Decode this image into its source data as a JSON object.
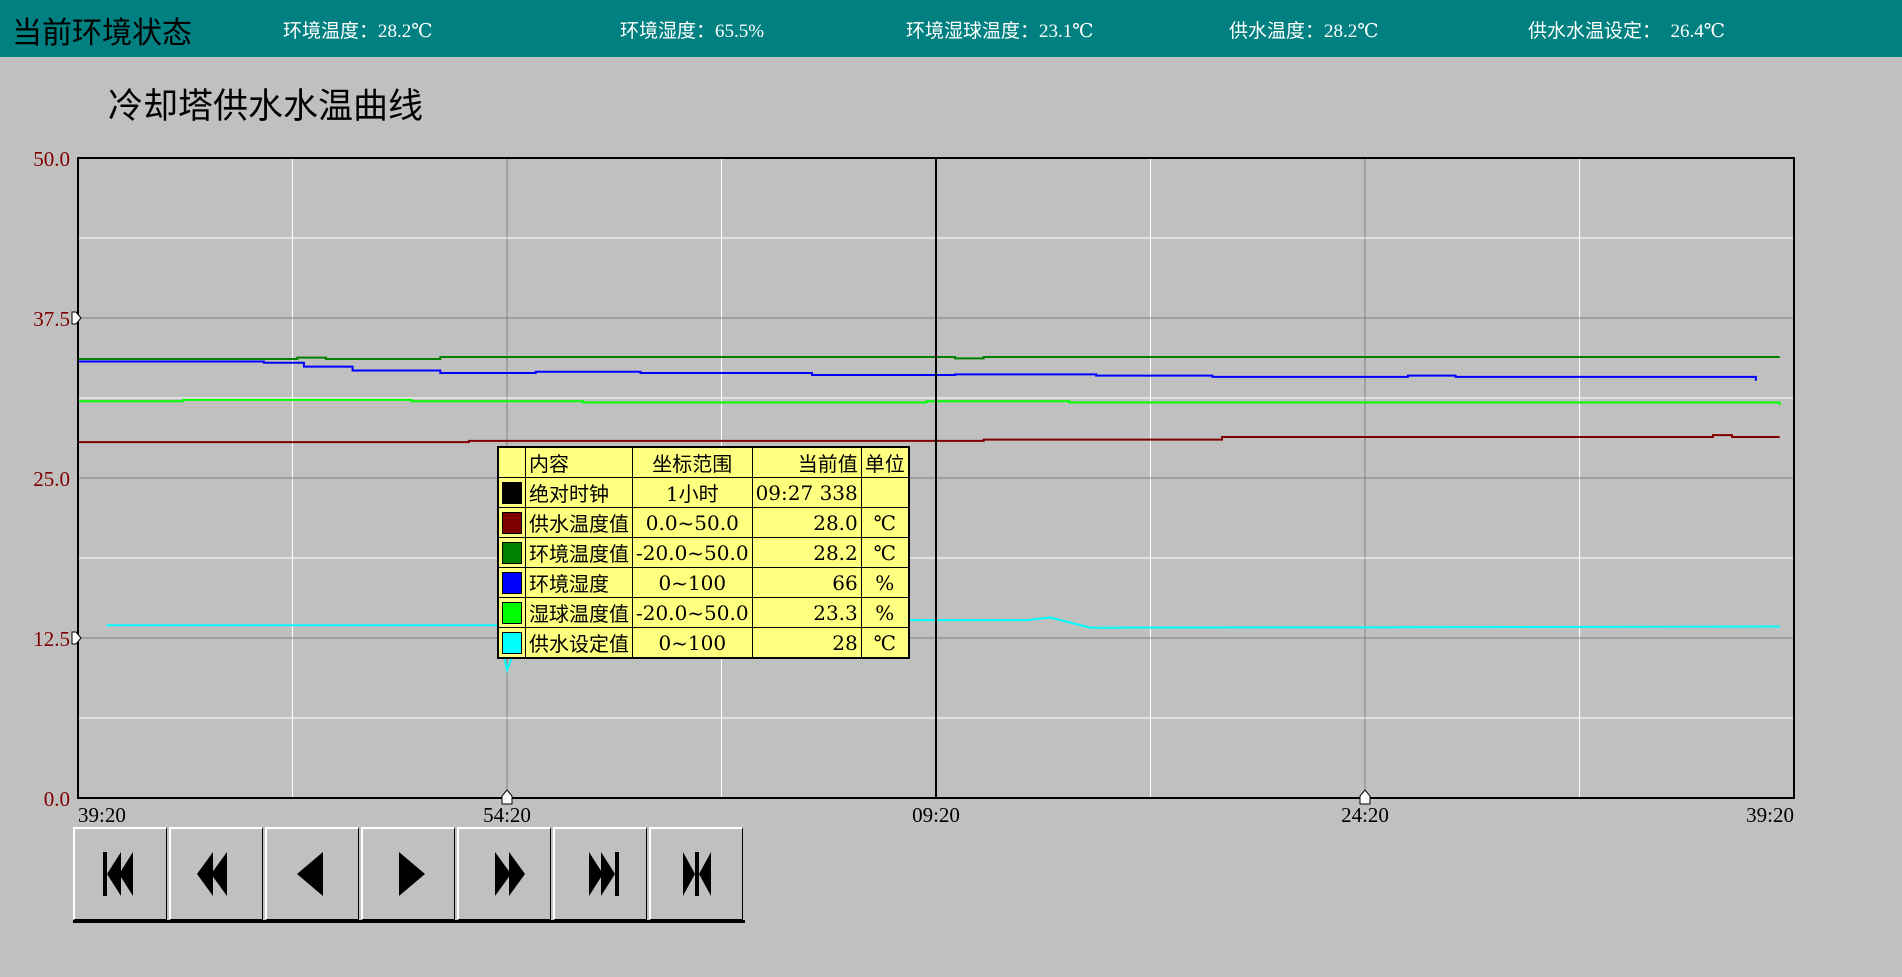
{
  "header": {
    "title": "当前环境状态",
    "items": [
      {
        "label": "环境温度：28.2℃"
      },
      {
        "label": "环境湿度：65.5%"
      },
      {
        "label": "环境湿球温度：23.1℃"
      },
      {
        "label": "供水温度：28.2℃"
      },
      {
        "label": "供水水温设定：  26.4℃"
      }
    ]
  },
  "colors": {
    "header_bg": "#008080",
    "axis_label": "#800000",
    "legend_bg": "#ffff80"
  },
  "chart_data": {
    "type": "line",
    "title": "冷却塔供水水温曲线",
    "ylim": [
      0,
      50
    ],
    "y_ticks": [
      "50.0",
      "37.5",
      "25.0",
      "12.5",
      "0.0"
    ],
    "x_ticks": [
      "39:20",
      "54:20",
      "09:20",
      "24:20",
      "39:20"
    ],
    "x_range_minutes": 60,
    "grid": true,
    "cursor_time": "09:20",
    "series": [
      {
        "name": "环境温度值",
        "color": "#008000",
        "points": [
          [
            "39:20",
            34.3
          ],
          [
            "47:00",
            34.4
          ],
          [
            "48:00",
            34.3
          ],
          [
            "52:00",
            34.45
          ],
          [
            "05:00",
            34.45
          ],
          [
            "10:00",
            34.35
          ],
          [
            "11:00",
            34.45
          ],
          [
            "38:50",
            34.45
          ]
        ]
      },
      {
        "name": "环境湿度",
        "color": "#0000ff",
        "points": [
          [
            "39:20",
            34.1
          ],
          [
            "45:50",
            34.0
          ],
          [
            "47:14",
            33.7
          ],
          [
            "48:56",
            33.4
          ],
          [
            "52:00",
            33.2
          ],
          [
            "55:20",
            33.3
          ],
          [
            "59:00",
            33.2
          ],
          [
            "05:00",
            33.05
          ],
          [
            "10:00",
            33.1
          ],
          [
            "14:56",
            33.0
          ],
          [
            "19:00",
            32.9
          ],
          [
            "25:50",
            33.0
          ],
          [
            "26:30",
            33.0
          ],
          [
            "27:30",
            32.9
          ],
          [
            "38:00",
            32.6
          ]
        ]
      },
      {
        "name": "湿球温度值",
        "color": "#00ff00",
        "points": [
          [
            "39:20",
            31.0
          ],
          [
            "43:00",
            31.1
          ],
          [
            "51:00",
            31.0
          ],
          [
            "57:00",
            30.9
          ],
          [
            "09:00",
            31.0
          ],
          [
            "14:00",
            30.9
          ],
          [
            "37:50",
            30.9
          ],
          [
            "38:50",
            30.7
          ]
        ]
      },
      {
        "name": "供水温度值",
        "color": "#800000",
        "points": [
          [
            "39:20",
            27.8
          ],
          [
            "52:30",
            27.8
          ],
          [
            "53:00",
            27.9
          ],
          [
            "09:00",
            27.9
          ],
          [
            "11:00",
            28.0
          ],
          [
            "19:08",
            28.0
          ],
          [
            "19:20",
            28.2
          ],
          [
            "35:50",
            28.2
          ],
          [
            "36:30",
            28.35
          ],
          [
            "37:10",
            28.2
          ],
          [
            "38:50",
            28.2
          ]
        ]
      },
      {
        "name": "供水设定值",
        "color": "#00ffff",
        "points": [
          [
            "40:20",
            13.5
          ],
          [
            "54:00",
            13.5
          ],
          [
            "54:20",
            10.0
          ],
          [
            "55:00",
            13.8
          ],
          [
            "09:20",
            13.9
          ],
          [
            "12:30",
            13.9
          ],
          [
            "13:20",
            14.1
          ],
          [
            "14:44",
            13.3
          ],
          [
            "38:50",
            13.4
          ]
        ]
      }
    ]
  },
  "legend": {
    "headers": [
      "内容",
      "坐标范围",
      "当前值",
      "单位"
    ],
    "rows": [
      {
        "color": "#000000",
        "name": "绝对时钟",
        "range": "1小时",
        "value": "09:27 338",
        "unit": ""
      },
      {
        "color": "#800000",
        "name": "供水温度值",
        "range": "0.0~50.0",
        "value": "28.0",
        "unit": "℃"
      },
      {
        "color": "#008000",
        "name": "环境温度值",
        "range": "-20.0~50.0",
        "value": "28.2",
        "unit": "℃"
      },
      {
        "color": "#0000ff",
        "name": "环境湿度",
        "range": "0~100",
        "value": "66",
        "unit": "%"
      },
      {
        "color": "#00ff00",
        "name": "湿球温度值",
        "range": "-20.0~50.0",
        "value": "23.3",
        "unit": "%"
      },
      {
        "color": "#00ffff",
        "name": "供水设定值",
        "range": "0~100",
        "value": "28",
        "unit": "℃"
      }
    ]
  },
  "buttons": [
    {
      "name": "first-page-icon"
    },
    {
      "name": "fast-backward-icon"
    },
    {
      "name": "step-backward-icon"
    },
    {
      "name": "step-forward-icon"
    },
    {
      "name": "fast-forward-icon"
    },
    {
      "name": "last-page-icon"
    },
    {
      "name": "center-icon"
    }
  ]
}
